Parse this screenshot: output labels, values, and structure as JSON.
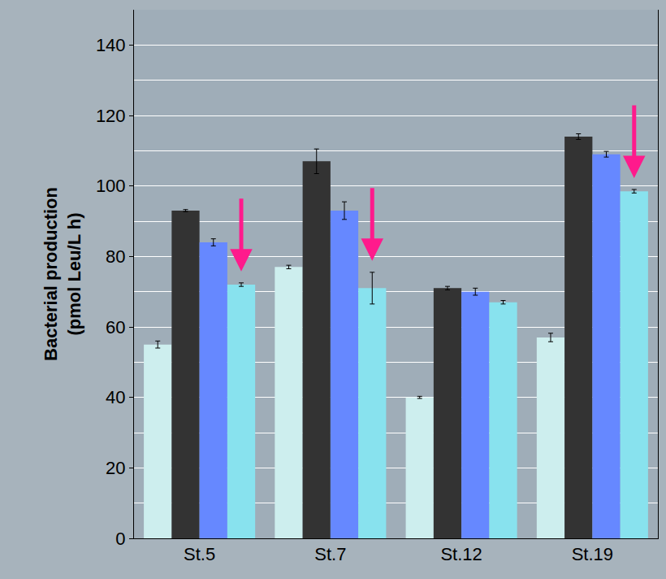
{
  "chart_data": {
    "type": "bar",
    "ylabel": "Bacterial production\n(pmol Leu/L h)",
    "categories": [
      "St.5",
      "St.7",
      "St.12",
      "St.19"
    ],
    "series": [
      {
        "color": "#cdeeee",
        "values": [
          55,
          77,
          40,
          57
        ],
        "errors": [
          1,
          0.5,
          0.3,
          1.2
        ]
      },
      {
        "color": "#333333",
        "values": [
          93,
          107,
          71,
          114
        ],
        "errors": [
          0.3,
          3.5,
          0.5,
          0.8
        ]
      },
      {
        "color": "#6688ff",
        "values": [
          84,
          93,
          70,
          109
        ],
        "errors": [
          1,
          2.5,
          1,
          0.8
        ]
      },
      {
        "color": "#88e2ee",
        "values": [
          72,
          71,
          67,
          98.5
        ],
        "errors": [
          0.5,
          4.5,
          0.5,
          0.5
        ]
      }
    ],
    "ylim": [
      0,
      150
    ],
    "yticks": [
      0,
      20,
      40,
      60,
      80,
      100,
      120,
      140
    ],
    "grid": true,
    "annotations": [
      {
        "category": "St.5",
        "marker": "arrow",
        "color": "#ff1a8c"
      },
      {
        "category": "St.7",
        "marker": "arrow",
        "color": "#ff1a8c"
      },
      {
        "category": "St.19",
        "marker": "arrow",
        "color": "#ff1a8c"
      }
    ]
  }
}
